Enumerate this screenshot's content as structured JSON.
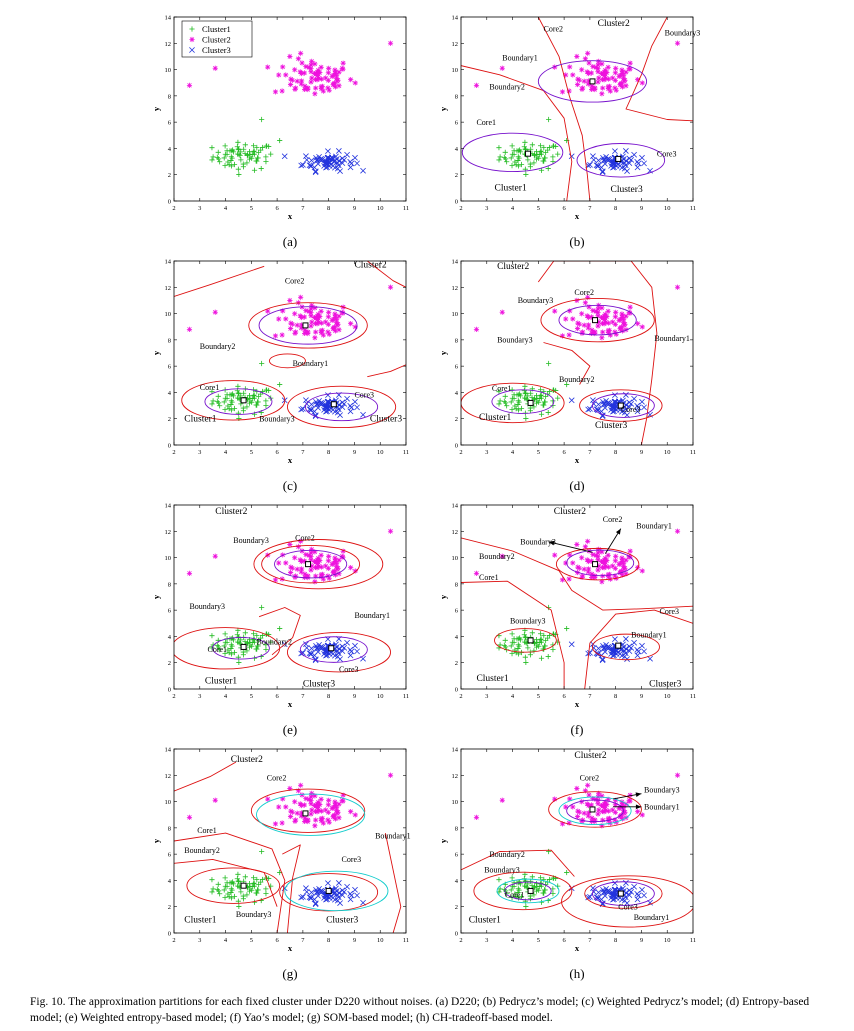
{
  "caption": {
    "text": "Fig. 10. The approximation partitions for each fixed cluster under D220 without noises. (a) D220; (b) Pedrycz’s model; (c) Weighted Pedrycz’s model; (d) Entropy-based model; (e) Weighted entropy-based model; (f) Yao’s model; (g) SOM-based model; (h) CH-tradeoff-based model."
  },
  "colors": {
    "cluster1": "#22bb22",
    "cluster2": "#ee11dd",
    "cluster3": "#2233dd",
    "boundary": "#dd1111",
    "core": "#7711cc",
    "cyan": "#11cccc"
  },
  "chart_data": [
    {
      "panel": "(a)",
      "type": "scatter",
      "xlabel": "x",
      "ylabel": "y",
      "xlim": [
        2,
        11
      ],
      "ylim": [
        0,
        14
      ],
      "xticks": [
        2,
        3,
        4,
        5,
        6,
        7,
        8,
        9,
        10,
        11
      ],
      "yticks": [
        0,
        2,
        4,
        6,
        8,
        10,
        12,
        14
      ],
      "legend": {
        "position": "top-left",
        "entries": [
          "Cluster1",
          "Cluster2",
          "Cluster3"
        ]
      },
      "series": [
        {
          "name": "Cluster1",
          "marker": "+",
          "center": [
            4.7,
            3.4
          ],
          "spread": [
            0.85,
            0.75
          ]
        },
        {
          "name": "Cluster2",
          "marker": "*",
          "center": [
            7.4,
            9.4
          ],
          "spread": [
            1.1,
            1.05
          ]
        },
        {
          "name": "Cluster3",
          "marker": "x",
          "center": [
            8.0,
            3.0
          ],
          "spread": [
            0.7,
            0.5
          ]
        }
      ],
      "annotations": []
    },
    {
      "panel": "(b)",
      "type": "scatter",
      "xlabel": "x",
      "ylabel": "y",
      "xlim": [
        2,
        11
      ],
      "ylim": [
        0,
        14
      ],
      "xticks": [
        2,
        3,
        4,
        5,
        6,
        7,
        8,
        9,
        10,
        11
      ],
      "yticks": [
        0,
        2,
        4,
        6,
        8,
        10,
        12,
        14
      ],
      "annotations": [
        {
          "text": "Cluster2",
          "x": 7.3,
          "y": 13.3
        },
        {
          "text": "Core2",
          "x": 5.2,
          "y": 12.9
        },
        {
          "text": "Boundary3",
          "x": 9.9,
          "y": 12.6
        },
        {
          "text": "Boundary1",
          "x": 3.6,
          "y": 10.7
        },
        {
          "text": "Boundary2",
          "x": 3.1,
          "y": 8.5
        },
        {
          "text": "Core1",
          "x": 2.6,
          "y": 5.8
        },
        {
          "text": "Core3",
          "x": 9.6,
          "y": 3.4
        },
        {
          "text": "Cluster1",
          "x": 3.3,
          "y": 0.8
        },
        {
          "text": "Cluster3",
          "x": 7.8,
          "y": 0.7
        }
      ]
    },
    {
      "panel": "(c)",
      "type": "scatter",
      "xlabel": "x",
      "ylabel": "y",
      "xlim": [
        2,
        11
      ],
      "ylim": [
        0,
        14
      ],
      "xticks": [
        2,
        3,
        4,
        5,
        6,
        7,
        8,
        9,
        10,
        11
      ],
      "yticks": [
        0,
        2,
        4,
        6,
        8,
        10,
        12,
        14
      ],
      "annotations": [
        {
          "text": "Cluster2",
          "x": 9.0,
          "y": 13.5
        },
        {
          "text": "Core2",
          "x": 6.3,
          "y": 12.3
        },
        {
          "text": "Boundary2",
          "x": 3.0,
          "y": 7.3
        },
        {
          "text": "Boundary1",
          "x": 6.6,
          "y": 6.0
        },
        {
          "text": "Core1",
          "x": 3.0,
          "y": 4.2
        },
        {
          "text": "Core3",
          "x": 9.0,
          "y": 3.6
        },
        {
          "text": "Cluster1",
          "x": 2.4,
          "y": 1.8
        },
        {
          "text": "Boundary3",
          "x": 5.3,
          "y": 1.8
        },
        {
          "text": "Cluster3",
          "x": 9.6,
          "y": 1.8
        }
      ]
    },
    {
      "panel": "(d)",
      "type": "scatter",
      "xlabel": "x",
      "ylabel": "y",
      "xlim": [
        2,
        11
      ],
      "ylim": [
        0,
        14
      ],
      "xticks": [
        2,
        3,
        4,
        5,
        6,
        7,
        8,
        9,
        10,
        11
      ],
      "yticks": [
        0,
        2,
        4,
        6,
        8,
        10,
        12,
        14
      ],
      "annotations": [
        {
          "text": "Cluster2",
          "x": 3.4,
          "y": 13.4
        },
        {
          "text": "Core2",
          "x": 6.4,
          "y": 11.4
        },
        {
          "text": "Boundary3",
          "x": 4.2,
          "y": 10.8
        },
        {
          "text": "Boundary1",
          "x": 9.5,
          "y": 7.9
        },
        {
          "text": "Boundary3",
          "x": 3.4,
          "y": 7.8
        },
        {
          "text": "Boundary2",
          "x": 5.8,
          "y": 4.8
        },
        {
          "text": "Core1",
          "x": 3.2,
          "y": 4.1
        },
        {
          "text": "Core3",
          "x": 8.2,
          "y": 2.5
        },
        {
          "text": "Cluster1",
          "x": 2.7,
          "y": 1.9
        },
        {
          "text": "Cluster3",
          "x": 7.2,
          "y": 1.3
        }
      ]
    },
    {
      "panel": "(e)",
      "type": "scatter",
      "xlabel": "x",
      "ylabel": "y",
      "xlim": [
        2,
        11
      ],
      "ylim": [
        0,
        14
      ],
      "xticks": [
        2,
        3,
        4,
        5,
        6,
        7,
        8,
        9,
        10,
        11
      ],
      "yticks": [
        0,
        2,
        4,
        6,
        8,
        10,
        12,
        14
      ],
      "annotations": [
        {
          "text": "Cluster2",
          "x": 3.6,
          "y": 13.3
        },
        {
          "text": "Boundary3",
          "x": 4.3,
          "y": 11.1
        },
        {
          "text": "Core2",
          "x": 6.7,
          "y": 11.3
        },
        {
          "text": "Boundary3",
          "x": 2.6,
          "y": 6.1
        },
        {
          "text": "Boundary1",
          "x": 9.0,
          "y": 5.4
        },
        {
          "text": "Boundary2",
          "x": 5.2,
          "y": 3.4
        },
        {
          "text": "Core1",
          "x": 3.3,
          "y": 2.8
        },
        {
          "text": "Core3",
          "x": 8.4,
          "y": 1.3
        },
        {
          "text": "Cluster1",
          "x": 3.2,
          "y": 0.4
        },
        {
          "text": "Cluster3",
          "x": 7.0,
          "y": 0.2
        }
      ]
    },
    {
      "panel": "(f)",
      "type": "scatter",
      "xlabel": "x",
      "ylabel": "y",
      "xlim": [
        2,
        11
      ],
      "ylim": [
        0,
        14
      ],
      "xticks": [
        2,
        3,
        4,
        5,
        6,
        7,
        8,
        9,
        10,
        11
      ],
      "yticks": [
        0,
        2,
        4,
        6,
        8,
        10,
        12,
        14
      ],
      "annotations": [
        {
          "text": "Cluster2",
          "x": 5.6,
          "y": 13.3
        },
        {
          "text": "Core2",
          "x": 7.5,
          "y": 12.7
        },
        {
          "text": "Boundary1",
          "x": 8.8,
          "y": 12.2
        },
        {
          "text": "Boundary3",
          "x": 4.3,
          "y": 11.0
        },
        {
          "text": "Boundary2",
          "x": 2.7,
          "y": 9.9
        },
        {
          "text": "Core1",
          "x": 2.7,
          "y": 8.3
        },
        {
          "text": "Core3",
          "x": 9.7,
          "y": 5.7
        },
        {
          "text": "Boundary3",
          "x": 3.9,
          "y": 5.0
        },
        {
          "text": "Boundary1",
          "x": 8.6,
          "y": 3.9
        },
        {
          "text": "Cluster1",
          "x": 2.6,
          "y": 0.6
        },
        {
          "text": "Cluster3",
          "x": 9.3,
          "y": 0.2
        }
      ]
    },
    {
      "panel": "(g)",
      "type": "scatter",
      "xlabel": "x",
      "ylabel": "y",
      "xlim": [
        2,
        11
      ],
      "ylim": [
        0,
        14
      ],
      "xticks": [
        2,
        3,
        4,
        5,
        6,
        7,
        8,
        9,
        10,
        11
      ],
      "yticks": [
        0,
        2,
        4,
        6,
        8,
        10,
        12,
        14
      ],
      "annotations": [
        {
          "text": "Cluster2",
          "x": 4.2,
          "y": 13.0
        },
        {
          "text": "Core2",
          "x": 5.6,
          "y": 11.6
        },
        {
          "text": "Boundary1",
          "x": 9.8,
          "y": 7.2
        },
        {
          "text": "Core1",
          "x": 2.9,
          "y": 7.6
        },
        {
          "text": "Boundary2",
          "x": 2.4,
          "y": 6.1
        },
        {
          "text": "Core3",
          "x": 8.5,
          "y": 5.4
        },
        {
          "text": "Cluster1",
          "x": 2.4,
          "y": 0.8
        },
        {
          "text": "Boundary3",
          "x": 4.4,
          "y": 1.2
        },
        {
          "text": "Cluster3",
          "x": 7.9,
          "y": 0.8
        }
      ]
    },
    {
      "panel": "(h)",
      "type": "scatter",
      "xlabel": "x",
      "ylabel": "y",
      "xlim": [
        2,
        11
      ],
      "ylim": [
        0,
        14
      ],
      "xticks": [
        2,
        3,
        4,
        5,
        6,
        7,
        8,
        9,
        10,
        11
      ],
      "yticks": [
        0,
        2,
        4,
        6,
        8,
        10,
        12,
        14
      ],
      "annotations": [
        {
          "text": "Cluster2",
          "x": 6.4,
          "y": 13.3
        },
        {
          "text": "Core2",
          "x": 6.6,
          "y": 11.6
        },
        {
          "text": "Boundary3",
          "x": 9.1,
          "y": 10.7
        },
        {
          "text": "Boundary1",
          "x": 9.1,
          "y": 9.4
        },
        {
          "text": "Boundary2",
          "x": 3.1,
          "y": 5.8
        },
        {
          "text": "Boundary3",
          "x": 2.9,
          "y": 4.6
        },
        {
          "text": "Core1",
          "x": 3.7,
          "y": 2.7
        },
        {
          "text": "Core3",
          "x": 8.1,
          "y": 1.8
        },
        {
          "text": "Cluster1",
          "x": 2.3,
          "y": 0.8
        },
        {
          "text": "Boundary1",
          "x": 8.7,
          "y": 1.0
        }
      ]
    }
  ]
}
